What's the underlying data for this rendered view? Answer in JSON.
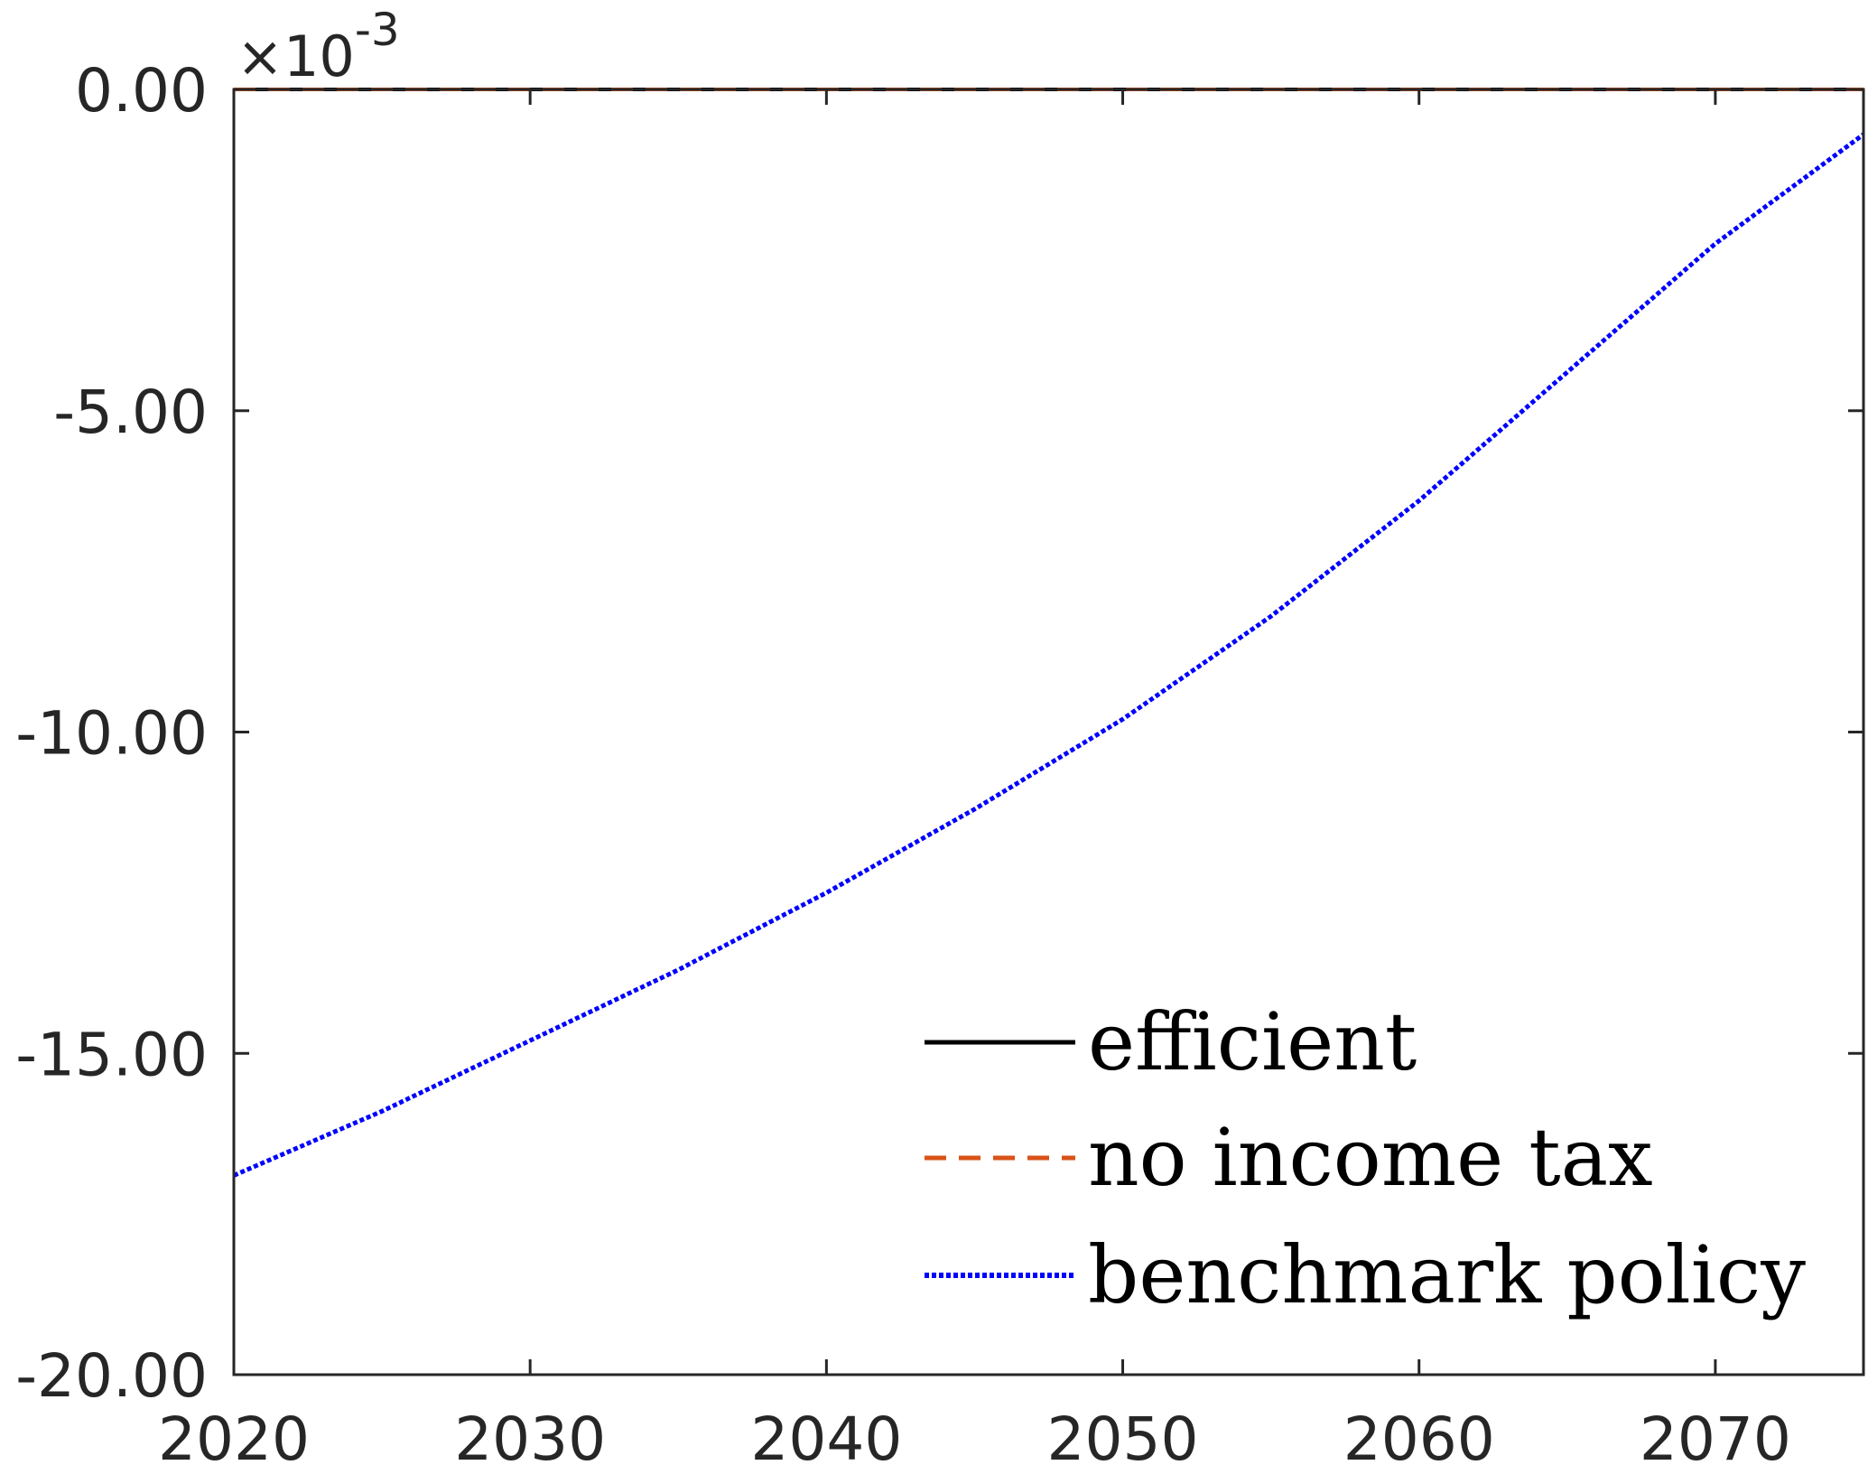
{
  "chart_data": {
    "type": "line",
    "title": "",
    "xlabel": "",
    "ylabel": "",
    "xlim": [
      2020,
      2075
    ],
    "ylim": [
      -20,
      0
    ],
    "y_scale_exponent": "×10-3",
    "y_exponent_base": "×10",
    "y_exponent_power": "-3",
    "x_ticks": [
      2020,
      2030,
      2040,
      2050,
      2060,
      2070
    ],
    "x_tick_labels": [
      "2020",
      "2030",
      "2040",
      "2050",
      "2060",
      "2070"
    ],
    "y_ticks": [
      0,
      -5,
      -10,
      -15,
      -20
    ],
    "y_tick_labels": [
      "0.00",
      "-5.00",
      "-10.00",
      "-15.00",
      "-20.00"
    ],
    "grid": false,
    "legend_position": "bottom-right",
    "x": [
      2020,
      2025,
      2030,
      2035,
      2040,
      2045,
      2050,
      2055,
      2060,
      2065,
      2070,
      2075
    ],
    "series": [
      {
        "name": "efficient",
        "style": "solid",
        "color": "#000000",
        "values": [
          0,
          0,
          0,
          0,
          0,
          0,
          0,
          0,
          0,
          0,
          0,
          0
        ]
      },
      {
        "name": "no income tax",
        "style": "dashed",
        "color": "#D95319",
        "values": [
          0,
          0,
          0,
          0,
          0,
          0,
          0,
          0,
          0,
          0,
          0,
          0
        ]
      },
      {
        "name": "benchmark policy",
        "style": "dotted",
        "color": "#0000FF",
        "values": [
          -16.9,
          -15.9,
          -14.8,
          -13.7,
          -12.5,
          -11.2,
          -9.8,
          -8.2,
          -6.4,
          -4.4,
          -2.4,
          -0.7
        ]
      }
    ]
  }
}
